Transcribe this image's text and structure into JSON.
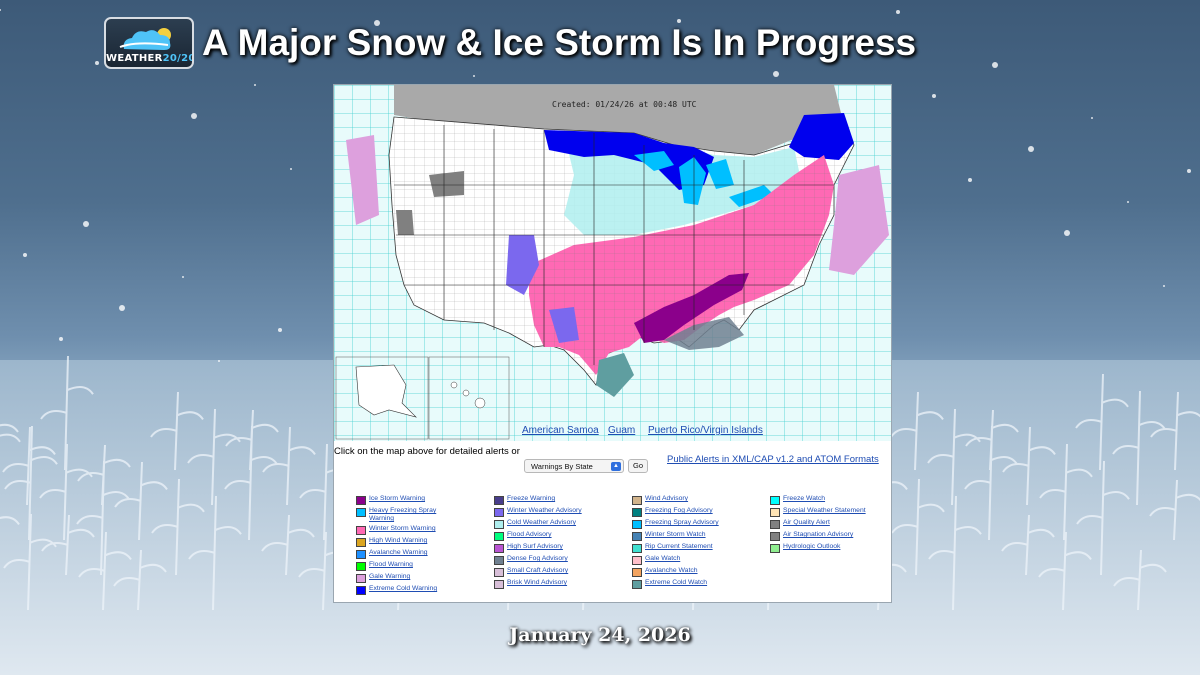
{
  "brand": {
    "logo_text_main": "WEATHER",
    "logo_text_accent": "20/20",
    "logo_icon": "cloud-sun-icon"
  },
  "headline": "A Major Snow & Ice Storm Is In Progress",
  "date": "January 24, 2026",
  "map": {
    "created": "Created: 01/24/26 at 00:48 UTC",
    "territory_links": [
      "American Samoa",
      "Guam",
      "Puerto Rico/Virgin Islands"
    ]
  },
  "controls": {
    "click_text": "Click on the map above for detailed alerts or",
    "select_value": "Warnings By State",
    "go_label": "Go",
    "xml_link": "Public Alerts in XML/CAP v1.2 and ATOM Formats"
  },
  "legend_columns": [
    [
      {
        "label": "Ice Storm Warning",
        "color": "#8b008b"
      },
      {
        "label": "Heavy Freezing Spray Warning",
        "color": "#00bfff"
      },
      {
        "label": "Winter Storm Warning",
        "color": "#ff69b4"
      },
      {
        "label": "High Wind Warning",
        "color": "#daa520"
      },
      {
        "label": "Avalanche Warning",
        "color": "#1e90ff"
      },
      {
        "label": "Flood Warning",
        "color": "#00ff00"
      },
      {
        "label": "Gale Warning",
        "color": "#dda0dd"
      },
      {
        "label": "Extreme Cold Warning",
        "color": "#0000ff"
      }
    ],
    [
      {
        "label": "Freeze Warning",
        "color": "#483d8b"
      },
      {
        "label": "Winter Weather Advisory",
        "color": "#7b68ee"
      },
      {
        "label": "Cold Weather Advisory",
        "color": "#afeeee"
      },
      {
        "label": "Flood Advisory",
        "color": "#00ff7f"
      },
      {
        "label": "High Surf Advisory",
        "color": "#ba55d3"
      },
      {
        "label": "Dense Fog Advisory",
        "color": "#708090"
      },
      {
        "label": "Small Craft Advisory",
        "color": "#d8bfd8"
      },
      {
        "label": "Brisk Wind Advisory",
        "color": "#d8bfd8"
      }
    ],
    [
      {
        "label": "Wind Advisory",
        "color": "#d2b48c"
      },
      {
        "label": "Freezing Fog Advisory",
        "color": "#008080"
      },
      {
        "label": "Freezing Spray Advisory",
        "color": "#00bfff"
      },
      {
        "label": "Winter Storm Watch",
        "color": "#4682b4"
      },
      {
        "label": "Rip Current Statement",
        "color": "#40e0d0"
      },
      {
        "label": "Gale Watch",
        "color": "#ffc0cb"
      },
      {
        "label": "Avalanche Watch",
        "color": "#f4a460"
      },
      {
        "label": "Extreme Cold Watch",
        "color": "#5f9ea0"
      }
    ],
    [
      {
        "label": "Freeze Watch",
        "color": "#00ffff"
      },
      {
        "label": "Special Weather Statement",
        "color": "#ffe4b5"
      },
      {
        "label": "Air Quality Alert",
        "color": "#808080"
      },
      {
        "label": "Air Stagnation Advisory",
        "color": "#808080"
      },
      {
        "label": "Hydrologic Outlook",
        "color": "#90ee90"
      }
    ]
  ]
}
